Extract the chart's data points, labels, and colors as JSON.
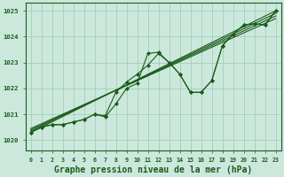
{
  "bg_color": "#cce8dd",
  "grid_color": "#99ccaa",
  "line_color": "#1a5c1a",
  "marker_color": "#1a5c1a",
  "xlabel": "Graphe pression niveau de la mer (hPa)",
  "xlabel_fontsize": 7,
  "xlim": [
    -0.5,
    23.5
  ],
  "ylim": [
    1019.6,
    1025.3
  ],
  "yticks": [
    1020,
    1021,
    1022,
    1023,
    1024,
    1025
  ],
  "xticks": [
    0,
    1,
    2,
    3,
    4,
    5,
    6,
    7,
    8,
    9,
    10,
    11,
    12,
    13,
    14,
    15,
    16,
    17,
    18,
    19,
    20,
    21,
    22,
    23
  ],
  "jagged_series": [
    1020.3,
    1020.5,
    1020.6,
    1020.6,
    1020.7,
    1020.8,
    1021.0,
    1020.95,
    1021.85,
    1022.25,
    1022.55,
    1022.9,
    1023.35,
    1023.0,
    1022.55,
    1021.85,
    1021.85,
    1022.3,
    1023.65,
    1024.1,
    1024.45,
    1024.5,
    1024.45,
    1025.0
  ],
  "peak_series": [
    1020.3,
    1020.5,
    1020.6,
    1020.6,
    1020.7,
    1020.8,
    1021.0,
    1020.9,
    1021.4,
    1022.0,
    1022.2,
    1023.35,
    1023.4,
    1023.0,
    1022.55,
    1021.85,
    1021.85,
    1022.3,
    1023.65,
    1024.1,
    1024.45,
    1024.5,
    1024.45,
    1025.0
  ],
  "straight_lines": [
    [
      [
        0,
        23
      ],
      [
        1020.3,
        1025.0
      ]
    ],
    [
      [
        0,
        23
      ],
      [
        1020.35,
        1024.9
      ]
    ],
    [
      [
        0,
        23
      ],
      [
        1020.4,
        1024.8
      ]
    ],
    [
      [
        0,
        23
      ],
      [
        1020.45,
        1024.7
      ]
    ]
  ]
}
